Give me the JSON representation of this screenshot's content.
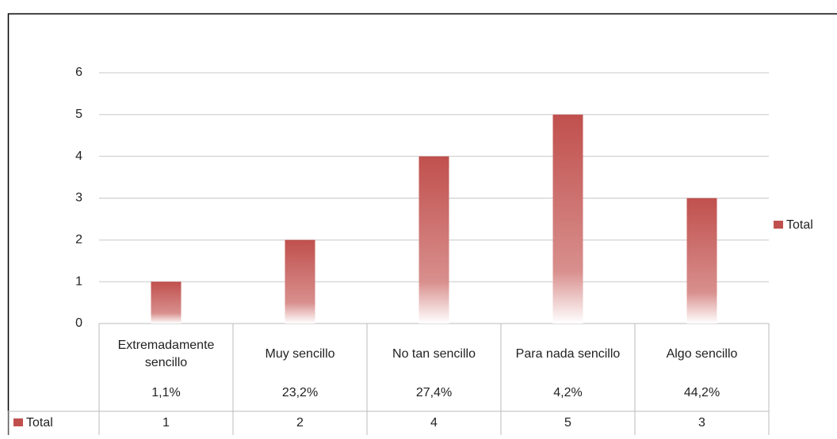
{
  "chart_data": {
    "type": "bar",
    "categories": [
      "Extremadamente sencillo",
      "Muy sencillo",
      "No tan sencillo",
      "Para nada sencillo",
      "Algo sencillo"
    ],
    "percent_labels": [
      "1,1%",
      "23,2%",
      "27,4%",
      "4,2%",
      "44,2%"
    ],
    "series": [
      {
        "name": "Total",
        "color": "#c0504d",
        "values": [
          1,
          2,
          4,
          5,
          3
        ]
      }
    ],
    "ylim": [
      0,
      6
    ],
    "yticks": [
      0,
      1,
      2,
      3,
      4,
      5,
      6
    ],
    "grid": true,
    "legend": "right",
    "data_table": true
  }
}
